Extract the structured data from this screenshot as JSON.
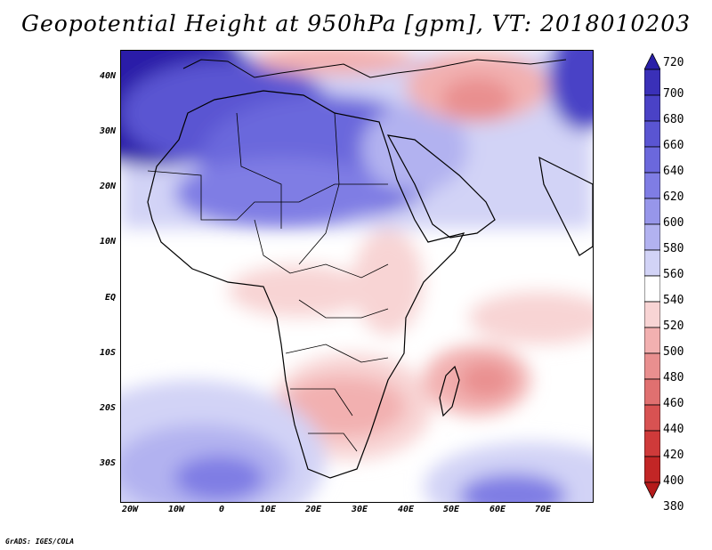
{
  "title": "Geopotential Height at 950hPa [gpm], VT: 2018010203",
  "credit": "GrADS: IGES/COLA",
  "lat_labels": [
    "40N",
    "30N",
    "20N",
    "10N",
    "EQ",
    "10S",
    "20S",
    "30S"
  ],
  "lon_labels": [
    "20W",
    "10W",
    "0",
    "10E",
    "20E",
    "30E",
    "40E",
    "50E",
    "60E",
    "70E"
  ],
  "colorbar": {
    "levels": [
      "720",
      "700",
      "680",
      "660",
      "640",
      "620",
      "600",
      "580",
      "560",
      "540",
      "520",
      "500",
      "480",
      "460",
      "440",
      "420",
      "400",
      "380"
    ],
    "colors": [
      "#2a1fa8",
      "#3a30b8",
      "#4a42c6",
      "#5a55d2",
      "#6b68dc",
      "#7f7de4",
      "#9796ea",
      "#b2b2f0",
      "#d2d3f6",
      "#ffffff",
      "#f8d4d4",
      "#f2b0b0",
      "#e98f8f",
      "#e07070",
      "#d85252",
      "#cf3a3a",
      "#c22626",
      "#b51a1a"
    ]
  }
}
